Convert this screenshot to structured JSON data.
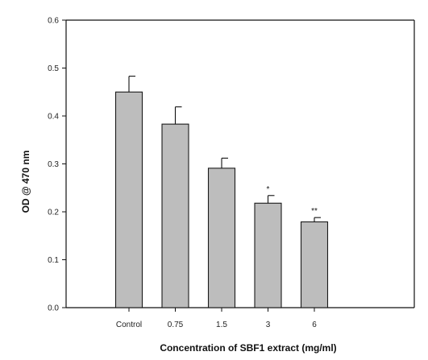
{
  "chart_data": {
    "type": "bar",
    "title": "",
    "xlabel": "Concentration of SBF1 extract (mg/ml)",
    "ylabel": "OD @ 470 nm",
    "categories": [
      "Control",
      "0.75",
      "1.5",
      "3",
      "6"
    ],
    "values": [
      0.45,
      0.383,
      0.291,
      0.218,
      0.179
    ],
    "errors": [
      0.033,
      0.036,
      0.021,
      0.016,
      0.009
    ],
    "annotations": [
      "",
      "",
      "",
      "*",
      "**"
    ],
    "ylim": [
      0,
      0.6
    ],
    "yticks": [
      "0.0",
      "0.1",
      "0.2",
      "0.3",
      "0.4",
      "0.5",
      "0.6"
    ],
    "grid": false,
    "legend": "none",
    "colors": {
      "bar_fill": "#bdbdbd",
      "bar_stroke": "#1a1a1a",
      "axis": "#111111"
    }
  }
}
